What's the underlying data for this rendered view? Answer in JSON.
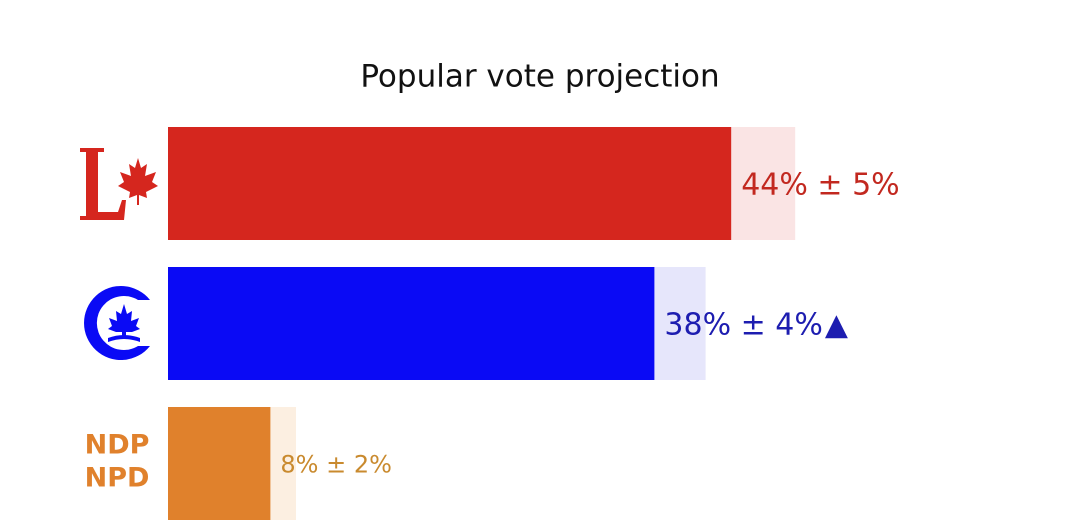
{
  "chart_data": {
    "type": "bar",
    "orientation": "horizontal",
    "title": "Popular vote projection",
    "categories": [
      null,
      null,
      null
    ],
    "logo_text": [
      "NDP",
      "NPD"
    ],
    "values": [
      44,
      38,
      8
    ],
    "errors": [
      5,
      4,
      2
    ],
    "value_labels": [
      "44% ± 5%",
      "38% ± 4%",
      "8% ± 2%"
    ],
    "markers": [
      null,
      "▲",
      null
    ],
    "colors": [
      "#d5261e",
      "#0a0af5",
      "#e0812c"
    ],
    "range_colors": [
      "#fae4e4",
      "#e6e6fb",
      "#fcefe1"
    ],
    "label_colors": [
      "#c2281f",
      "#1d1db0",
      "#c98a2e"
    ],
    "xlim": [
      0,
      55
    ]
  }
}
